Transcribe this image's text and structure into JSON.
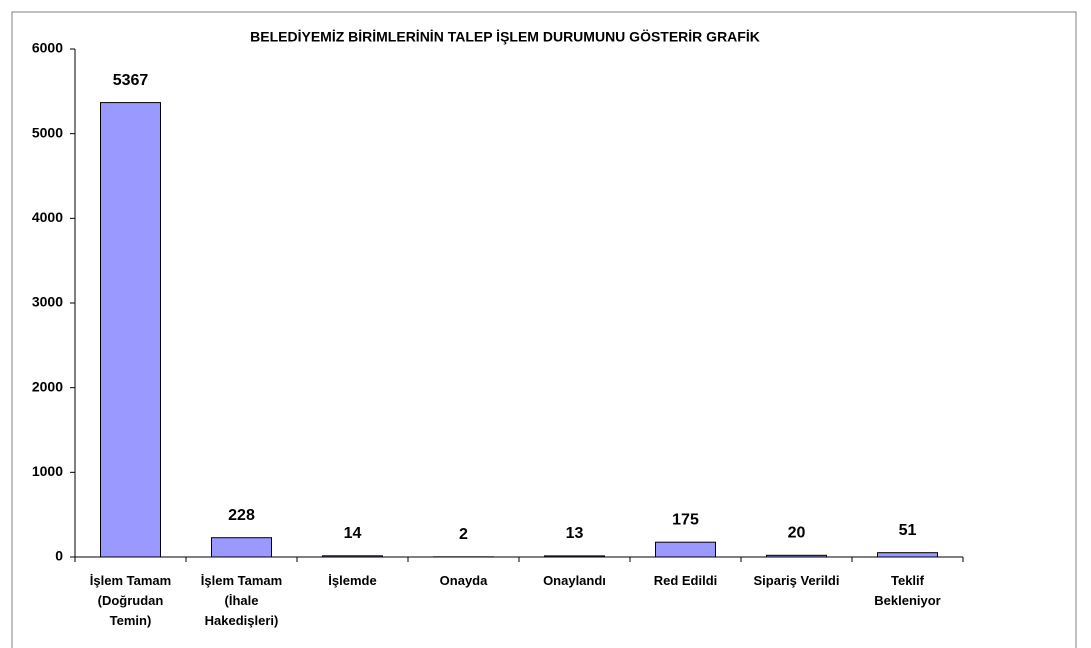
{
  "chart_data": {
    "type": "bar",
    "title": "BELEDİYEMİZ BİRİMLERİNİN TALEP İŞLEM DURUMUNU GÖSTERİR GRAFİK",
    "categories": [
      "İşlem Tamam (Doğrudan Temin)",
      "İşlem Tamam (İhale Hakedişleri)",
      "İşlemde",
      "Onayda",
      "Onaylandı",
      "Red Edildi",
      "Sipariş Verildi",
      "Teklif Bekleniyor"
    ],
    "values": [
      5367,
      228,
      14,
      2,
      13,
      175,
      20,
      51
    ],
    "color": "#9999ff",
    "ylim": [
      0,
      6000
    ],
    "yticks": [
      0,
      1000,
      2000,
      3000,
      4000,
      5000,
      6000
    ],
    "grid": false
  }
}
